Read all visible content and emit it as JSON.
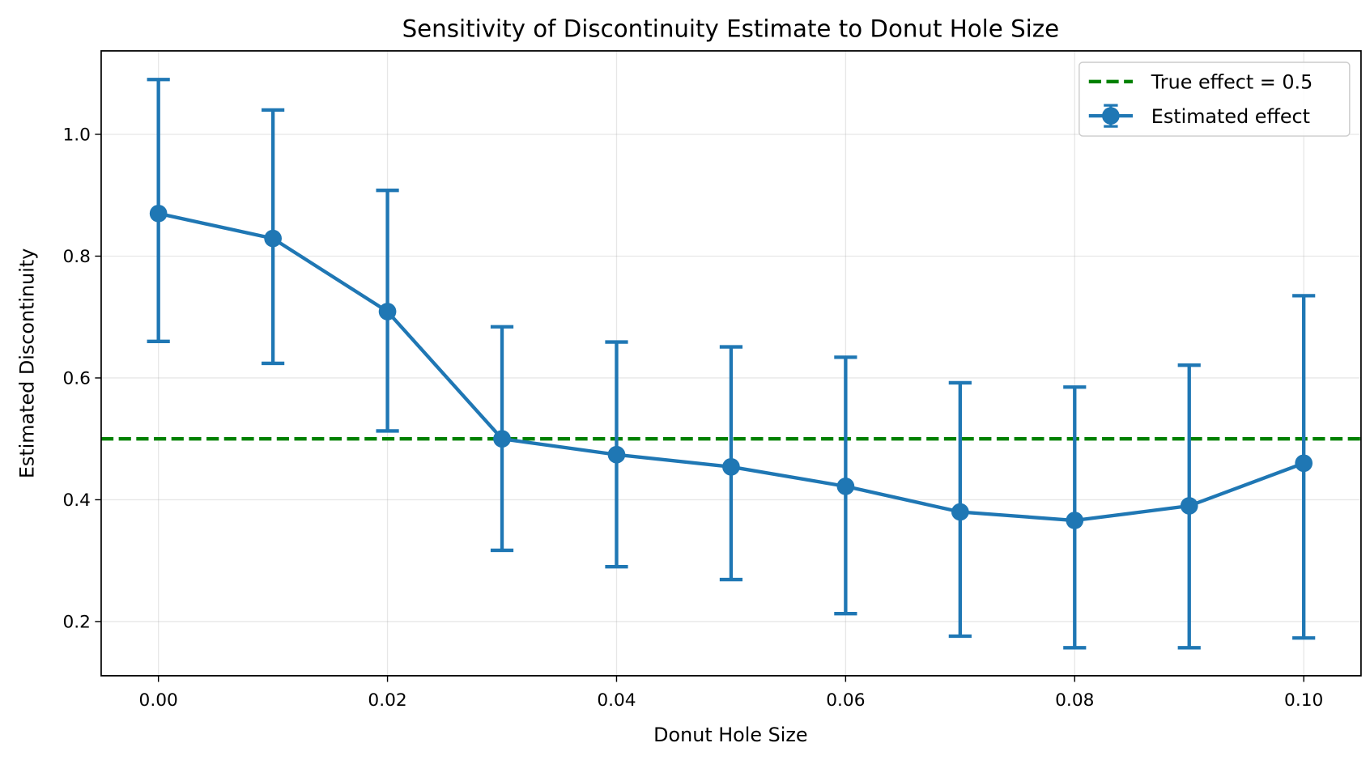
{
  "chart_data": {
    "type": "line",
    "title": "Sensitivity of Discontinuity Estimate to Donut Hole Size",
    "xlabel": "Donut Hole Size",
    "ylabel": "Estimated Discontinuity",
    "xlim": [
      -0.005,
      0.105
    ],
    "ylim": [
      0.111,
      1.137
    ],
    "xticks": [
      "0.00",
      "0.02",
      "0.04",
      "0.06",
      "0.08",
      "0.10"
    ],
    "xtick_values": [
      0,
      0.02,
      0.04,
      0.06,
      0.08,
      0.1
    ],
    "yticks": [
      "0.2",
      "0.4",
      "0.6",
      "0.8",
      "1.0"
    ],
    "ytick_values": [
      0.2,
      0.4,
      0.6,
      0.8,
      1.0
    ],
    "grid": true,
    "legend_placement": "top-right",
    "series": [
      {
        "name": "Estimated effect",
        "color": "#1f77b4",
        "marker": "circle",
        "x": [
          0,
          0.01,
          0.02,
          0.03,
          0.04,
          0.05,
          0.06,
          0.07,
          0.08,
          0.09,
          0.1
        ],
        "y": [
          0.87,
          0.829,
          0.709,
          0.5,
          0.474,
          0.454,
          0.422,
          0.38,
          0.366,
          0.39,
          0.46
        ],
        "error_lower": [
          0.66,
          0.624,
          0.513,
          0.317,
          0.29,
          0.269,
          0.213,
          0.176,
          0.157,
          0.157,
          0.173
        ],
        "error_upper": [
          1.09,
          1.04,
          0.908,
          0.684,
          0.659,
          0.651,
          0.634,
          0.592,
          0.585,
          0.621,
          0.735
        ]
      }
    ],
    "reference_line": {
      "name": "True effect = 0.5",
      "y": 0.5,
      "color": "#008000",
      "style": "dashed"
    }
  }
}
